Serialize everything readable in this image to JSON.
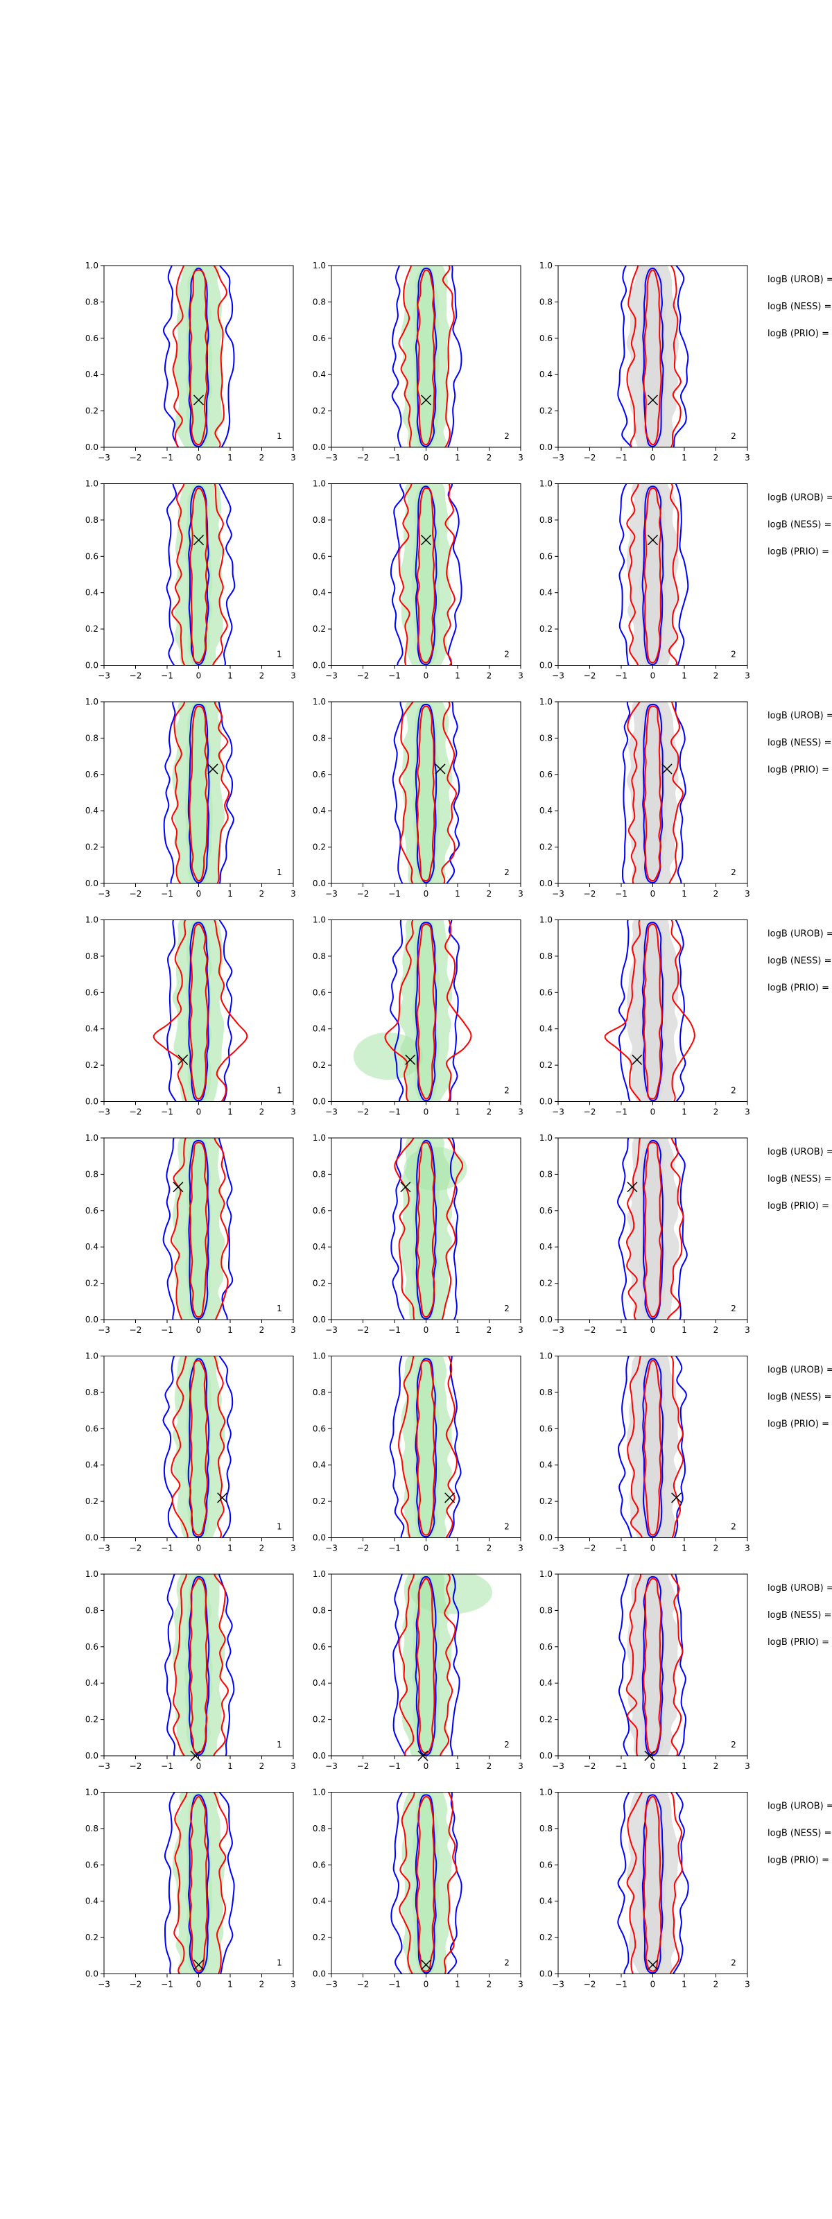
{
  "figure": {
    "rows": 8,
    "cols": 3,
    "panel_numbers": [
      "1",
      "2",
      "2"
    ],
    "side_labels": [
      "logB (UROB) =",
      "logB (NESS) =",
      "logB (PRIO) ="
    ]
  },
  "colors": {
    "blue_contour": "#0000ff",
    "red_contour": "#ff0000",
    "green_fill": "#a8e4a8",
    "grey_fill": "#d7d7d7",
    "marker": "#000000"
  },
  "chart_data": {
    "type": "contour",
    "xlim": [
      -3,
      3
    ],
    "ylim": [
      0.0,
      1.0
    ],
    "xticks": [
      -3,
      -2,
      -1,
      0,
      1,
      2,
      3
    ],
    "yticks": [
      0.0,
      0.2,
      0.4,
      0.6,
      0.8,
      1.0
    ],
    "xtick_labels": [
      "−3",
      "−2",
      "−1",
      "0",
      "1",
      "2",
      "3"
    ],
    "ytick_labels": [
      "0.0",
      "0.2",
      "0.4",
      "0.6",
      "0.8",
      "1.0"
    ],
    "legend": "none",
    "grid": false,
    "rows": [
      {
        "marker": {
          "x": 0.0,
          "y": 0.26
        }
      },
      {
        "marker": {
          "x": 0.0,
          "y": 0.69
        }
      },
      {
        "marker": {
          "x": 0.45,
          "y": 0.63
        }
      },
      {
        "marker": {
          "x": -0.5,
          "y": 0.23
        }
      },
      {
        "marker": {
          "x": -0.65,
          "y": 0.73
        }
      },
      {
        "marker": {
          "x": 0.75,
          "y": 0.22
        }
      },
      {
        "marker": {
          "x": -0.1,
          "y": 0.0
        }
      },
      {
        "marker": {
          "x": 0.0,
          "y": 0.05
        }
      }
    ]
  }
}
